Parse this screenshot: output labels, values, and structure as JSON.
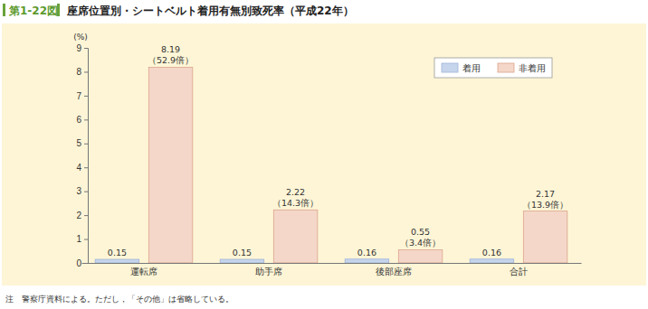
{
  "chart_data": {
    "type": "bar",
    "title": "座席位置別・シートベルト着用有無別致死率（平成22年）",
    "figure_label": "第1-22図",
    "ylabel": "(%)",
    "categories": [
      "運転席",
      "助手席",
      "後部座席",
      "合計"
    ],
    "series": [
      {
        "name": "着用",
        "color": "#c6d5ec",
        "values": [
          0.15,
          0.15,
          0.16,
          0.16
        ]
      },
      {
        "name": "非着用",
        "color": "#f4d7c8",
        "values": [
          8.19,
          2.22,
          0.55,
          2.17
        ]
      }
    ],
    "annotations": [
      "（52.9倍）",
      "（14.3倍）",
      "（3.4倍）",
      "（13.9倍）"
    ],
    "ylim": [
      0,
      9
    ],
    "yticks": [
      0,
      1,
      2,
      3,
      4,
      5,
      6,
      7,
      8,
      9
    ],
    "grid": false,
    "legend": "upper right",
    "data_labels": true,
    "note": "注　警察庁資料による。ただし，「その他」は省略している。"
  }
}
